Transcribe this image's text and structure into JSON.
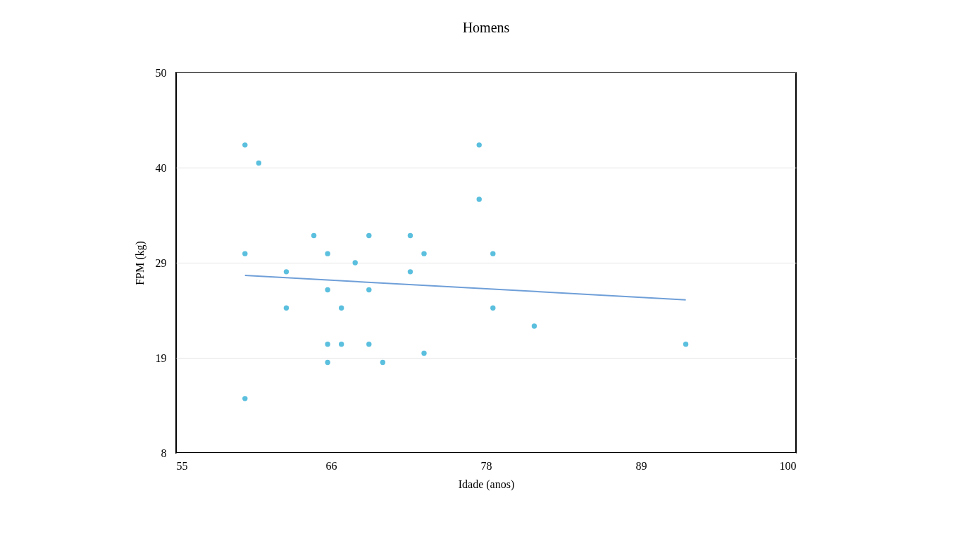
{
  "chart_data": {
    "type": "scatter",
    "title": "Homens",
    "xlabel": "Idade (anos)",
    "ylabel": "FPM (kg)",
    "xlim": [
      55,
      100
    ],
    "ylim": [
      8,
      50
    ],
    "xticks": [
      55,
      {
        "value": 66.25,
        "label": "66"
      },
      {
        "value": 77.5,
        "label": "78"
      },
      {
        "value": 88.75,
        "label": "89"
      },
      100
    ],
    "yticks": [
      8,
      {
        "value": 18.5,
        "label": "19"
      },
      29,
      {
        "value": 39.5,
        "label": "40"
      },
      50
    ],
    "grid": "y",
    "legend": false,
    "marker": "circle",
    "series": [
      {
        "type": "scatter",
        "color": "#5bbfde",
        "x": [
          60,
          61,
          60,
          60,
          63,
          63,
          65,
          66,
          66,
          66,
          66,
          67,
          67,
          68,
          69,
          69,
          69,
          70,
          72,
          72,
          73,
          73,
          77,
          77,
          78,
          78,
          81,
          92
        ],
        "values": [
          42,
          40,
          30,
          14,
          28,
          24,
          32,
          30,
          26,
          20,
          18,
          24,
          20,
          29,
          32,
          26,
          20,
          18,
          32,
          28,
          30,
          19,
          42,
          36,
          30,
          24,
          22,
          20
        ]
      },
      {
        "type": "line",
        "color": "#6f9fd8",
        "line_style": "solid",
        "marker": "none",
        "x": [
          60,
          92
        ],
        "values": [
          27.6,
          24.9
        ]
      }
    ]
  }
}
